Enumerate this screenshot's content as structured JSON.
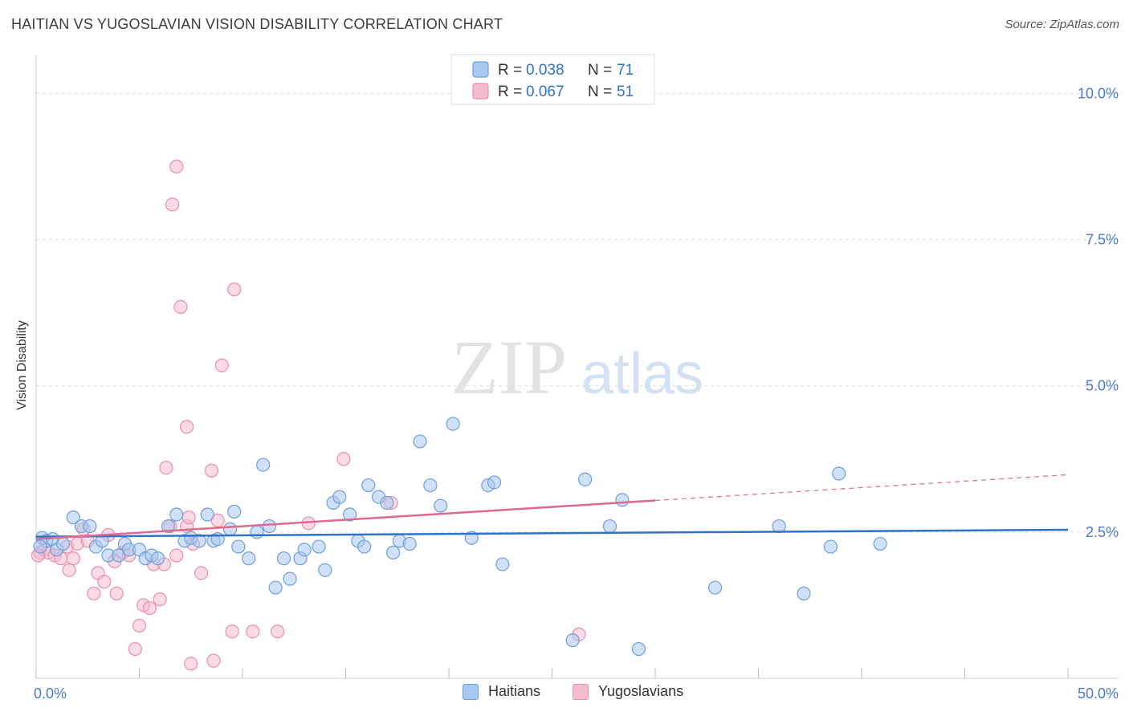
{
  "title": "HAITIAN VS YUGOSLAVIAN VISION DISABILITY CORRELATION CHART",
  "source": "Source: ZipAtlas.com",
  "watermark": {
    "zip": "ZIP",
    "atlas": "atlas"
  },
  "colors": {
    "blue_fill": "#a9c8f0",
    "blue_stroke": "#6f9fd8",
    "blue_line": "#2f72c9",
    "pink_fill": "#f5bccf",
    "pink_stroke": "#e98eab",
    "pink_line": "#e0698f",
    "axis_text": "#4a7ac8",
    "grid": "#dddddd"
  },
  "legend_top": [
    {
      "series": "Haitians",
      "r_label": "R = ",
      "r_value": "0.038",
      "n_label": "N = ",
      "n_value": "71"
    },
    {
      "series": "Yugoslavians",
      "r_label": "R = ",
      "r_value": "0.067",
      "n_label": "N = ",
      "n_value": "51"
    }
  ],
  "chart_data": {
    "type": "scatter",
    "title": "HAITIAN VS YUGOSLAVIAN VISION DISABILITY CORRELATION CHART",
    "xlabel": "",
    "ylabel": "Vision Disability",
    "xlim": [
      0,
      50
    ],
    "ylim": [
      0,
      10.5
    ],
    "x_tick_labels": [
      "0.0%",
      "50.0%"
    ],
    "y_ticks": [
      2.5,
      5.0,
      7.5,
      10.0
    ],
    "y_tick_labels": [
      "2.5%",
      "5.0%",
      "7.5%",
      "10.0%"
    ],
    "grid": true,
    "legend_position": "top-center",
    "series": [
      {
        "name": "Haitians",
        "r": 0.038,
        "n": 71,
        "trend": {
          "x": [
            0,
            50
          ],
          "y": [
            2.42,
            2.54
          ],
          "dashed_from_x": null
        },
        "points": [
          [
            0.3,
            2.4
          ],
          [
            0.5,
            2.35
          ],
          [
            0.8,
            2.38
          ],
          [
            1.0,
            2.2
          ],
          [
            1.3,
            2.3
          ],
          [
            1.8,
            2.75
          ],
          [
            2.2,
            2.6
          ],
          [
            2.6,
            2.6
          ],
          [
            2.9,
            2.25
          ],
          [
            3.2,
            2.35
          ],
          [
            3.5,
            2.1
          ],
          [
            4.0,
            2.1
          ],
          [
            4.3,
            2.3
          ],
          [
            4.5,
            2.2
          ],
          [
            5.0,
            2.2
          ],
          [
            5.3,
            2.05
          ],
          [
            5.6,
            2.1
          ],
          [
            5.9,
            2.05
          ],
          [
            6.4,
            2.6
          ],
          [
            6.8,
            2.8
          ],
          [
            7.2,
            2.35
          ],
          [
            7.5,
            2.4
          ],
          [
            7.9,
            2.35
          ],
          [
            8.3,
            2.8
          ],
          [
            8.6,
            2.35
          ],
          [
            8.8,
            2.38
          ],
          [
            9.4,
            2.55
          ],
          [
            9.6,
            2.85
          ],
          [
            9.8,
            2.25
          ],
          [
            10.3,
            2.05
          ],
          [
            10.7,
            2.5
          ],
          [
            11.0,
            3.65
          ],
          [
            11.3,
            2.6
          ],
          [
            11.6,
            1.55
          ],
          [
            12.0,
            2.05
          ],
          [
            12.3,
            1.7
          ],
          [
            12.8,
            2.05
          ],
          [
            13.0,
            2.2
          ],
          [
            13.7,
            2.25
          ],
          [
            14.0,
            1.85
          ],
          [
            14.4,
            3.0
          ],
          [
            14.7,
            3.1
          ],
          [
            15.2,
            2.8
          ],
          [
            15.6,
            2.35
          ],
          [
            15.9,
            2.25
          ],
          [
            16.1,
            3.3
          ],
          [
            16.6,
            3.1
          ],
          [
            17.0,
            3.0
          ],
          [
            17.3,
            2.15
          ],
          [
            17.6,
            2.35
          ],
          [
            18.1,
            2.3
          ],
          [
            18.6,
            4.05
          ],
          [
            19.1,
            3.3
          ],
          [
            19.6,
            2.95
          ],
          [
            20.2,
            4.35
          ],
          [
            21.1,
            2.4
          ],
          [
            21.9,
            3.3
          ],
          [
            22.2,
            3.35
          ],
          [
            22.6,
            1.95
          ],
          [
            26.0,
            0.65
          ],
          [
            26.6,
            3.4
          ],
          [
            27.8,
            2.6
          ],
          [
            28.4,
            3.05
          ],
          [
            29.2,
            0.5
          ],
          [
            32.9,
            1.55
          ],
          [
            36.0,
            2.6
          ],
          [
            37.2,
            1.45
          ],
          [
            38.5,
            2.25
          ],
          [
            38.9,
            3.5
          ],
          [
            40.9,
            2.3
          ],
          [
            0.2,
            2.25
          ]
        ]
      },
      {
        "name": "Yugoslavians",
        "r": 0.067,
        "n": 51,
        "trend": {
          "x": [
            0,
            50
          ],
          "y": [
            2.38,
            3.48
          ],
          "dashed_from_x": 30.0
        },
        "points": [
          [
            0.2,
            2.15
          ],
          [
            0.4,
            2.2
          ],
          [
            0.6,
            2.15
          ],
          [
            0.9,
            2.1
          ],
          [
            1.2,
            2.05
          ],
          [
            1.5,
            2.25
          ],
          [
            1.6,
            1.85
          ],
          [
            1.8,
            2.05
          ],
          [
            2.0,
            2.3
          ],
          [
            2.3,
            2.55
          ],
          [
            2.5,
            2.35
          ],
          [
            2.8,
            1.45
          ],
          [
            3.0,
            1.8
          ],
          [
            3.3,
            1.65
          ],
          [
            3.5,
            2.45
          ],
          [
            3.8,
            2.0
          ],
          [
            3.9,
            1.45
          ],
          [
            4.2,
            2.15
          ],
          [
            4.5,
            2.1
          ],
          [
            4.8,
            0.5
          ],
          [
            5.0,
            0.9
          ],
          [
            5.2,
            1.25
          ],
          [
            5.5,
            1.2
          ],
          [
            5.7,
            1.95
          ],
          [
            6.0,
            1.35
          ],
          [
            6.2,
            1.95
          ],
          [
            6.5,
            2.6
          ],
          [
            6.3,
            3.6
          ],
          [
            7.3,
            2.6
          ],
          [
            6.8,
            2.1
          ],
          [
            7.3,
            4.3
          ],
          [
            7.4,
            2.75
          ],
          [
            7.6,
            2.3
          ],
          [
            6.6,
            8.1
          ],
          [
            6.8,
            8.75
          ],
          [
            7.0,
            6.35
          ],
          [
            7.5,
            0.25
          ],
          [
            8.0,
            1.8
          ],
          [
            8.5,
            3.55
          ],
          [
            8.6,
            0.3
          ],
          [
            8.8,
            2.7
          ],
          [
            9.0,
            5.35
          ],
          [
            9.5,
            0.8
          ],
          [
            9.6,
            6.65
          ],
          [
            10.5,
            0.8
          ],
          [
            11.7,
            0.8
          ],
          [
            13.2,
            2.65
          ],
          [
            14.9,
            3.75
          ],
          [
            17.2,
            3.0
          ],
          [
            26.3,
            0.75
          ],
          [
            0.1,
            2.1
          ]
        ]
      }
    ]
  }
}
